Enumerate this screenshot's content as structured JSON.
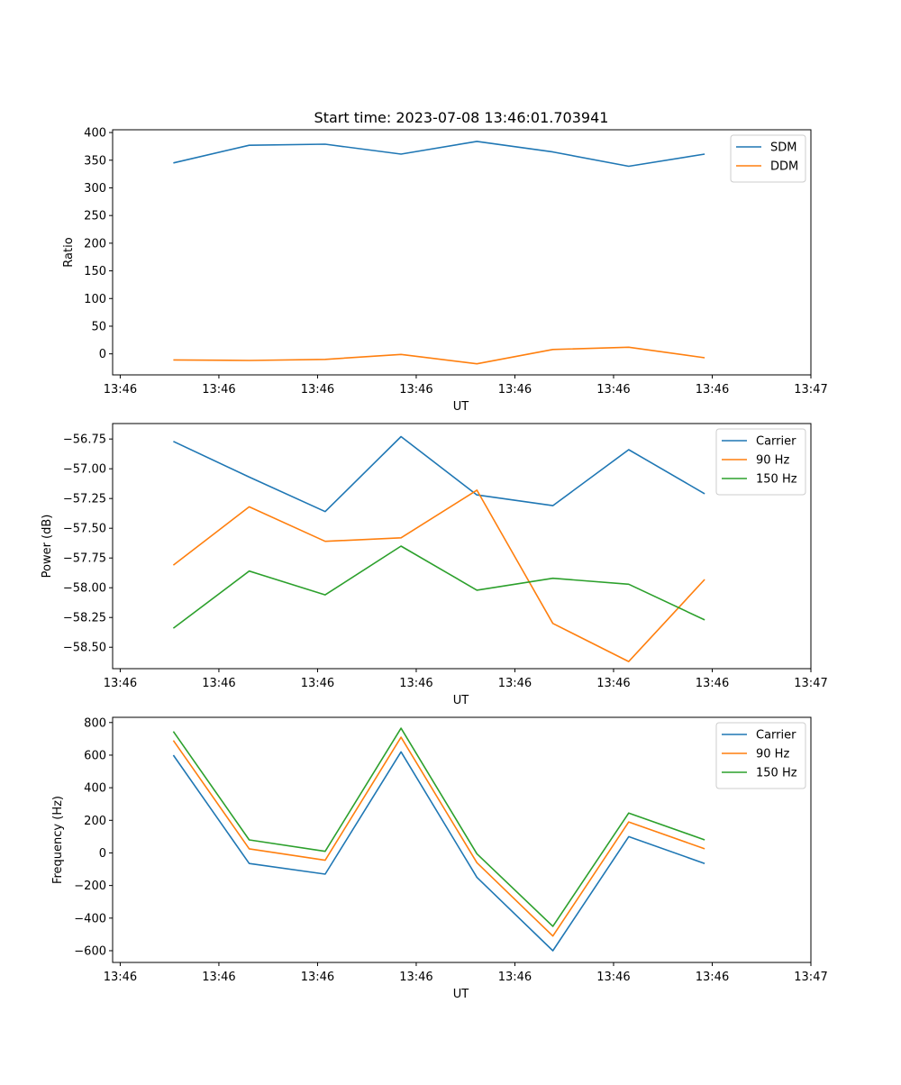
{
  "figure_title": "Start time: 2023-07-08 13:46:01.703941",
  "chart_data": [
    {
      "type": "line",
      "title": "Start time: 2023-07-08 13:46:01.703941",
      "xlabel": "UT",
      "ylabel": "Ratio",
      "x_ticks": [
        "13:46",
        "13:46",
        "13:46",
        "13:46",
        "13:46",
        "13:46",
        "13:46"
      ],
      "x_last_tick": "13:47",
      "x": [
        1,
        2,
        3,
        4,
        5,
        6,
        7,
        8
      ],
      "xlim": [
        0.2,
        9.4
      ],
      "ylim": [
        -38,
        405
      ],
      "y_ticks": [
        0,
        50,
        100,
        150,
        200,
        250,
        300,
        350,
        400
      ],
      "legend_position": "upper right",
      "series": [
        {
          "name": "SDM",
          "color": "#1f77b4",
          "values": [
            345,
            377,
            379,
            361,
            384,
            365,
            339,
            361
          ]
        },
        {
          "name": "DDM",
          "color": "#ff7f0e",
          "values": [
            -11,
            -12,
            -10,
            -1,
            -18,
            8,
            12,
            -7
          ]
        }
      ]
    },
    {
      "type": "line",
      "xlabel": "UT",
      "ylabel": "Power (dB)",
      "x_ticks": [
        "13:46",
        "13:46",
        "13:46",
        "13:46",
        "13:46",
        "13:46",
        "13:46"
      ],
      "x_last_tick": "13:47",
      "x": [
        1,
        2,
        3,
        4,
        5,
        6,
        7,
        8
      ],
      "xlim": [
        0.2,
        9.4
      ],
      "ylim": [
        -58.68,
        -56.62
      ],
      "y_ticks": [
        -58.5,
        -58.25,
        -58.0,
        -57.75,
        -57.5,
        -57.25,
        -57.0,
        -56.75
      ],
      "y_tick_labels": [
        "−58.50",
        "−58.25",
        "−58.00",
        "−57.75",
        "−57.50",
        "−57.25",
        "−57.00",
        "−56.75"
      ],
      "legend_position": "upper right",
      "series": [
        {
          "name": "Carrier",
          "color": "#1f77b4",
          "values": [
            -56.77,
            -57.07,
            -57.36,
            -56.73,
            -57.22,
            -57.31,
            -56.84,
            -57.21
          ]
        },
        {
          "name": "90 Hz",
          "color": "#ff7f0e",
          "values": [
            -57.81,
            -57.32,
            -57.61,
            -57.58,
            -57.18,
            -58.3,
            -58.62,
            -57.93
          ]
        },
        {
          "name": "150 Hz",
          "color": "#2ca02c",
          "values": [
            -58.34,
            -57.86,
            -58.06,
            -57.65,
            -58.02,
            -57.92,
            -57.97,
            -58.27
          ]
        }
      ]
    },
    {
      "type": "line",
      "xlabel": "UT",
      "ylabel": "Frequency (Hz)",
      "x_ticks": [
        "13:46",
        "13:46",
        "13:46",
        "13:46",
        "13:46",
        "13:46",
        "13:46"
      ],
      "x_last_tick": "13:47",
      "x": [
        1,
        2,
        3,
        4,
        5,
        6,
        7,
        8
      ],
      "xlim": [
        0.2,
        9.4
      ],
      "ylim": [
        -672,
        832
      ],
      "y_ticks": [
        -600,
        -400,
        -200,
        0,
        200,
        400,
        600,
        800
      ],
      "y_tick_labels": [
        "−600",
        "−400",
        "−200",
        "0",
        "200",
        "400",
        "600",
        "800"
      ],
      "legend_position": "upper right",
      "series": [
        {
          "name": "Carrier",
          "color": "#1f77b4",
          "values": [
            600,
            -65,
            -130,
            620,
            -150,
            -600,
            100,
            -65
          ]
        },
        {
          "name": "90 Hz",
          "color": "#ff7f0e",
          "values": [
            690,
            25,
            -45,
            710,
            -60,
            -510,
            190,
            25
          ]
        },
        {
          "name": "150 Hz",
          "color": "#2ca02c",
          "values": [
            745,
            80,
            10,
            765,
            -5,
            -450,
            245,
            80
          ]
        }
      ]
    }
  ]
}
